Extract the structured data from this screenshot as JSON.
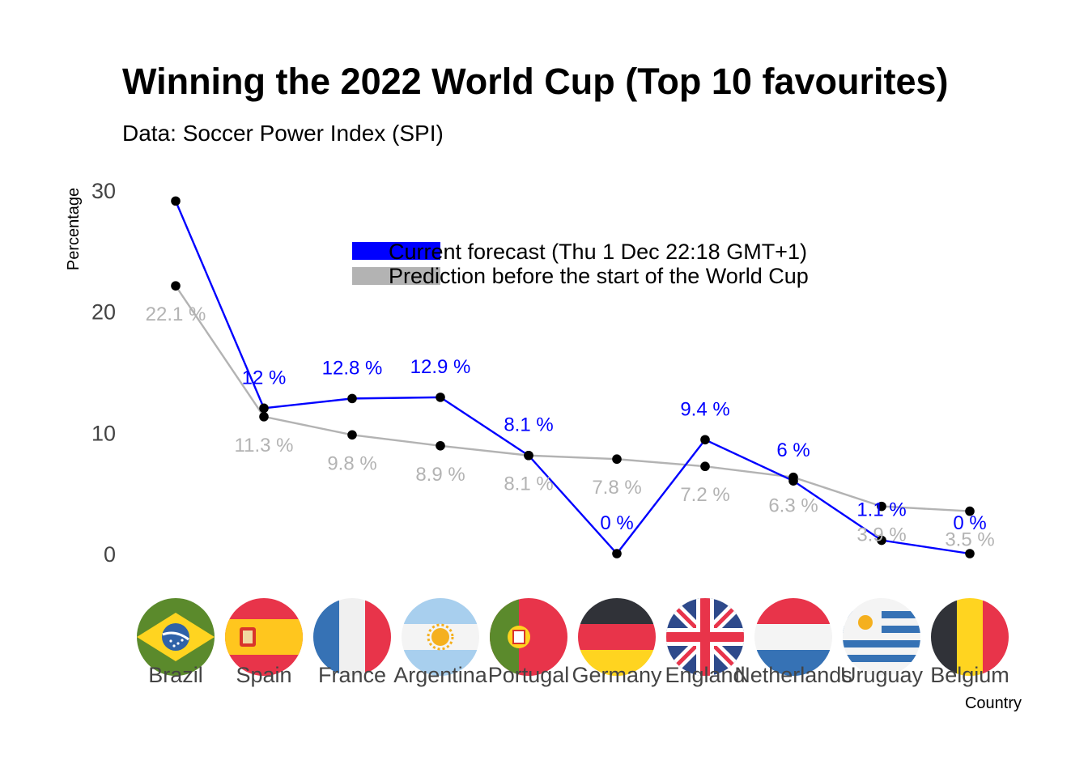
{
  "chart_data": {
    "type": "line",
    "title": "Winning the 2022 World Cup (Top 10 favourites)",
    "subtitle": "Data: Soccer Power Index (SPI)",
    "xlabel": "Country",
    "ylabel": "Percentage",
    "yticks": [
      0,
      10,
      20,
      30
    ],
    "ylim": [
      -1.2,
      32
    ],
    "grid": false,
    "legend_position": "top-center",
    "categories": [
      "Brazil",
      "Spain",
      "France",
      "Argentina",
      "Portugal",
      "Germany",
      "England",
      "Netherlands",
      "Uruguay",
      "Belgium"
    ],
    "series": [
      {
        "name": "Current forecast (Thu 1 Dec 22:18 GMT+1)",
        "color": "#0000ff",
        "values": [
          29.1,
          12.0,
          12.8,
          12.9,
          8.1,
          0.0,
          9.4,
          6.0,
          1.1,
          0.0
        ],
        "labels": [
          "",
          "12 %",
          "12.8 %",
          "12.9 %",
          "8.1 %",
          "0 %",
          "9.4 %",
          "6 %",
          "1.1 %",
          "0 %"
        ]
      },
      {
        "name": "Prediction before the start of the World Cup",
        "color": "#b3b3b3",
        "values": [
          22.1,
          11.3,
          9.8,
          8.9,
          8.1,
          7.8,
          7.2,
          6.3,
          3.9,
          3.5
        ],
        "labels": [
          "22.1 %",
          "11.3 %",
          "9.8 %",
          "8.9 %",
          "8.1 %",
          "7.8 %",
          "7.2 %",
          "6.3 %",
          "3.9 %",
          "3.5 %"
        ]
      }
    ],
    "flags": [
      "brazil-flag",
      "spain-flag",
      "france-flag",
      "argentina-flag",
      "portugal-flag",
      "germany-flag",
      "england-flag",
      "netherlands-flag",
      "uruguay-flag",
      "belgium-flag"
    ]
  }
}
